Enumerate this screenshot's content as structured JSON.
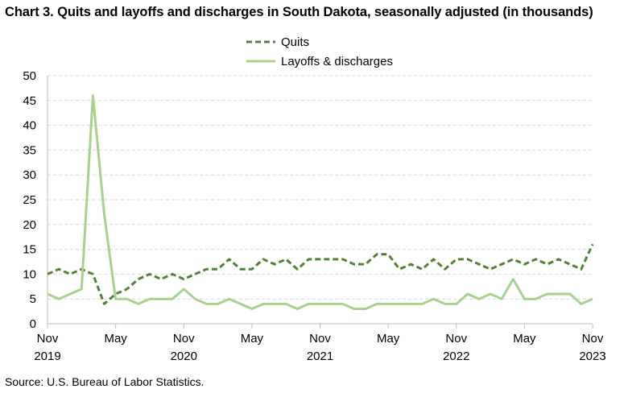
{
  "title": "Chart 3. Quits and layoffs and discharges in South Dakota, seasonally adjusted (in thousands)",
  "source": "Source: U.S. Bureau of Labor Statistics.",
  "colors": {
    "quits": "#548235",
    "layoffs": "#a9d18e",
    "grid": "#d9d9d9",
    "axis": "#bfbfbf"
  },
  "chart_data": {
    "type": "line",
    "title": "Chart 3. Quits and layoffs and discharges in South Dakota, seasonally adjusted (in thousands)",
    "xlabel": "",
    "ylabel": "",
    "ylim": [
      0,
      50
    ],
    "yticks": [
      0,
      5,
      10,
      15,
      20,
      25,
      30,
      35,
      40,
      45,
      50
    ],
    "grid": true,
    "legend_position": "top-center",
    "x_start": "Nov 2019",
    "x_end": "Nov 2023",
    "x_tick_labels": [
      {
        "month": "Nov",
        "year": "2019"
      },
      {
        "month": "May",
        "year": ""
      },
      {
        "month": "Nov",
        "year": "2020"
      },
      {
        "month": "May",
        "year": ""
      },
      {
        "month": "Nov",
        "year": "2021"
      },
      {
        "month": "May",
        "year": ""
      },
      {
        "month": "Nov",
        "year": "2022"
      },
      {
        "month": "May",
        "year": ""
      },
      {
        "month": "Nov",
        "year": "2023"
      }
    ],
    "series": [
      {
        "name": "Quits",
        "style": "dashed",
        "values": [
          10,
          11,
          10,
          11,
          10,
          4,
          6,
          7,
          9,
          10,
          9,
          10,
          9,
          10,
          11,
          11,
          13,
          11,
          11,
          13,
          12,
          13,
          11,
          13,
          13,
          13,
          13,
          12,
          12,
          14,
          14,
          11,
          12,
          11,
          13,
          11,
          13,
          13,
          12,
          11,
          12,
          13,
          12,
          13,
          12,
          13,
          12,
          11,
          16
        ]
      },
      {
        "name": "Layoffs & discharges",
        "style": "solid",
        "values": [
          6,
          5,
          6,
          7,
          46,
          22,
          5,
          5,
          4,
          5,
          5,
          5,
          7,
          5,
          4,
          4,
          5,
          4,
          3,
          4,
          4,
          4,
          3,
          4,
          4,
          4,
          4,
          3,
          3,
          4,
          4,
          4,
          4,
          4,
          5,
          4,
          4,
          6,
          5,
          6,
          5,
          9,
          5,
          5,
          6,
          6,
          6,
          4,
          5
        ]
      }
    ]
  }
}
